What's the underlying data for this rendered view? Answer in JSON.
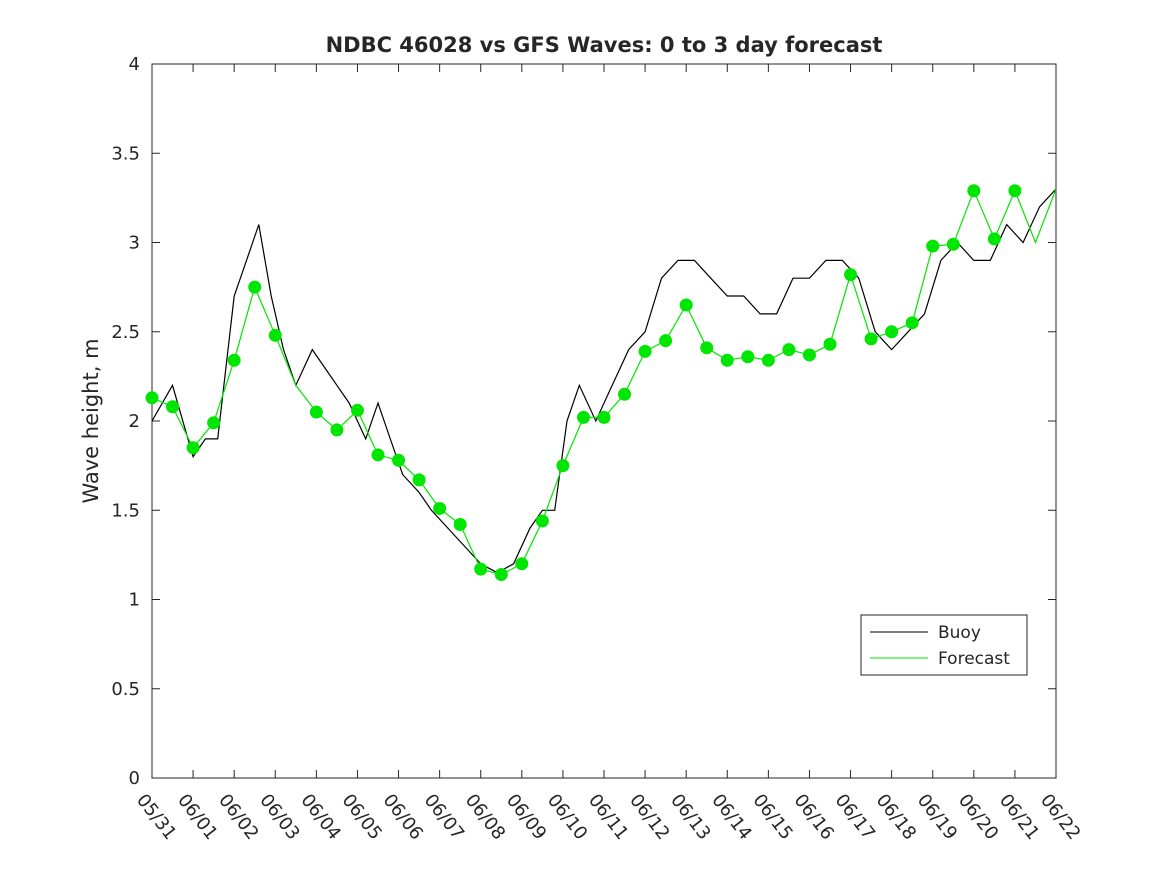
{
  "chart_data": {
    "type": "line",
    "title": "NDBC 46028 vs GFS Waves: 0 to 3 day forecast",
    "xlabel": "",
    "ylabel": "Wave height, m",
    "xlim": [
      "05/31",
      "06/22"
    ],
    "ylim": [
      0,
      4
    ],
    "yticks": [
      0,
      0.5,
      1,
      1.5,
      2,
      2.5,
      3,
      3.5,
      4
    ],
    "ytick_labels": [
      "0",
      "0.5",
      "1",
      "1.5",
      "2",
      "2.5",
      "3",
      "3.5",
      "4"
    ],
    "xtick_labels": [
      "05/31",
      "06/01",
      "06/02",
      "06/03",
      "06/04",
      "06/05",
      "06/06",
      "06/07",
      "06/08",
      "06/09",
      "06/10",
      "06/11",
      "06/12",
      "06/13",
      "06/14",
      "06/15",
      "06/16",
      "06/17",
      "06/18",
      "06/19",
      "06/20",
      "06/21",
      "06/22"
    ],
    "grid": false,
    "legend": {
      "placement": "bottom-right",
      "entries": [
        "Buoy",
        "Forecast"
      ]
    },
    "colors": {
      "buoy": "#000000",
      "forecast": "#00e600"
    },
    "series": [
      {
        "name": "Buoy",
        "x_days": [
          0,
          0.5,
          1,
          1.3,
          1.6,
          2.0,
          2.3,
          2.6,
          2.9,
          3.2,
          3.5,
          3.9,
          4.2,
          4.5,
          4.8,
          5.2,
          5.5,
          5.8,
          6.1,
          6.5,
          6.8,
          7.2,
          7.6,
          8.0,
          8.4,
          8.8,
          9.2,
          9.5,
          9.8,
          10.1,
          10.4,
          10.8,
          11.2,
          11.6,
          12.0,
          12.4,
          12.8,
          13.2,
          13.6,
          14.0,
          14.4,
          14.8,
          15.2,
          15.6,
          16.0,
          16.4,
          16.8,
          17.2,
          17.6,
          18.0,
          18.4,
          18.8,
          19.2,
          19.6,
          20.0,
          20.4,
          20.8,
          21.2,
          21.6,
          22.0
        ],
        "values": [
          2.0,
          2.2,
          1.8,
          1.9,
          1.9,
          2.7,
          2.9,
          3.1,
          2.7,
          2.4,
          2.2,
          2.4,
          2.3,
          2.2,
          2.1,
          1.9,
          2.1,
          1.9,
          1.7,
          1.6,
          1.5,
          1.4,
          1.3,
          1.2,
          1.15,
          1.2,
          1.4,
          1.5,
          1.5,
          2.0,
          2.2,
          2.0,
          2.2,
          2.4,
          2.5,
          2.8,
          2.9,
          2.9,
          2.8,
          2.7,
          2.7,
          2.6,
          2.6,
          2.8,
          2.8,
          2.9,
          2.9,
          2.8,
          2.5,
          2.4,
          2.5,
          2.6,
          2.9,
          3.0,
          2.9,
          2.9,
          3.1,
          3.0,
          3.2,
          3.3
        ]
      },
      {
        "name": "Forecast",
        "x_days": [
          0,
          0.5,
          1.0,
          1.5,
          2.0,
          2.5,
          3.0,
          3.5,
          4.0,
          4.5,
          5.0,
          5.5,
          6.0,
          6.5,
          7.0,
          7.5,
          8.0,
          8.5,
          9.0,
          9.5,
          10.0,
          10.5,
          11.0,
          11.5,
          12.0,
          12.5,
          13.0,
          13.5,
          14.0,
          14.5,
          15.0,
          15.5,
          16.0,
          16.5,
          17.0,
          17.5,
          18.0,
          18.5,
          19.0,
          19.5,
          20.0,
          20.5,
          21.0,
          21.5,
          22.0
        ],
        "values": [
          2.13,
          2.08,
          1.85,
          1.99,
          2.34,
          2.75,
          2.48,
          2.2,
          2.05,
          1.95,
          2.06,
          1.81,
          1.78,
          1.67,
          1.51,
          1.42,
          1.17,
          1.14,
          1.2,
          1.44,
          1.75,
          2.02,
          2.02,
          2.15,
          2.39,
          2.45,
          2.65,
          2.41,
          2.34,
          2.36,
          2.34,
          2.4,
          2.37,
          2.43,
          2.82,
          2.46,
          2.5,
          2.55,
          2.98,
          2.99,
          3.29,
          3.02,
          3.29,
          3.0,
          3.3
        ]
      }
    ],
    "markers": {
      "series": "Forecast",
      "x_days": [
        0,
        0.5,
        1.0,
        1.5,
        2.0,
        2.5,
        3.0,
        4.0,
        4.5,
        5.0,
        5.5,
        6.0,
        6.5,
        7.0,
        7.5,
        8.0,
        8.5,
        9.0,
        9.5,
        10.0,
        10.5,
        11.0,
        11.5,
        12.0,
        12.5,
        13.0,
        13.5,
        14.0,
        14.5,
        15.0,
        15.5,
        16.0,
        16.5,
        17.0,
        17.5,
        18.0,
        18.5,
        19.0,
        19.5,
        20.0,
        20.5,
        21.0
      ],
      "values": [
        2.13,
        2.08,
        1.85,
        1.99,
        2.34,
        2.75,
        2.48,
        2.05,
        1.95,
        2.06,
        1.81,
        1.78,
        1.67,
        1.51,
        1.42,
        1.17,
        1.14,
        1.2,
        1.44,
        1.75,
        2.02,
        2.02,
        2.15,
        2.39,
        2.45,
        2.65,
        2.41,
        2.34,
        2.36,
        2.34,
        2.4,
        2.37,
        2.43,
        2.82,
        2.46,
        2.5,
        2.55,
        2.98,
        2.99,
        3.29,
        3.02,
        3.29
      ]
    }
  }
}
